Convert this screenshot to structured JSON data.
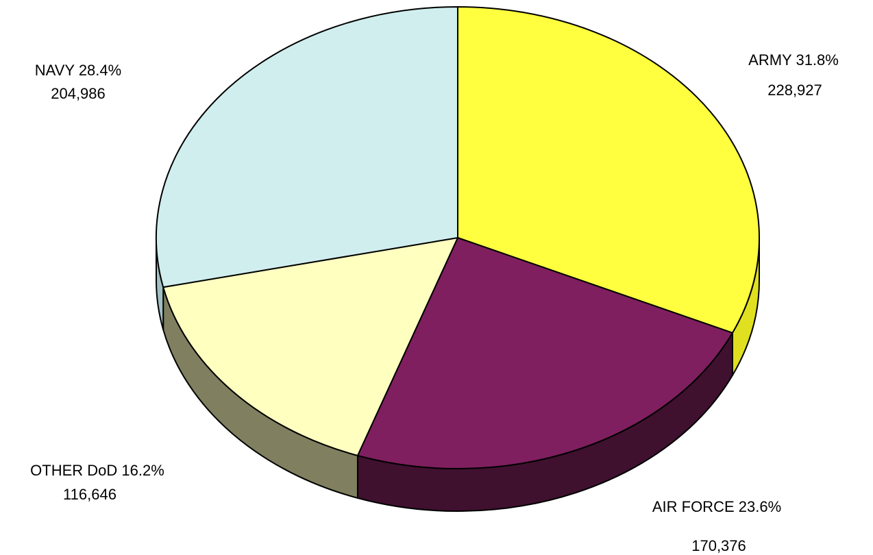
{
  "chart_data": {
    "type": "pie",
    "style": "3d",
    "title": "",
    "legend": "none",
    "slices": [
      {
        "name": "ARMY",
        "percent_label": "31.8%",
        "value": 228927,
        "value_label": "228,927",
        "color": "#ffff40",
        "side_color": "#e0e020"
      },
      {
        "name": "AIR FORCE",
        "percent_label": "23.6%",
        "value": 170376,
        "value_label": "170,376",
        "color": "#7f1f5f",
        "side_color": "#40102f"
      },
      {
        "name": "OTHER DoD",
        "percent_label": "16.2%",
        "value": 116646,
        "value_label": "116,646",
        "color": "#ffffc0",
        "side_color": "#808060"
      },
      {
        "name": "NAVY",
        "percent_label": "28.4%",
        "value": 204986,
        "value_label": "204,986",
        "color": "#d0eeee",
        "side_color": "#a0c0c4"
      }
    ]
  }
}
